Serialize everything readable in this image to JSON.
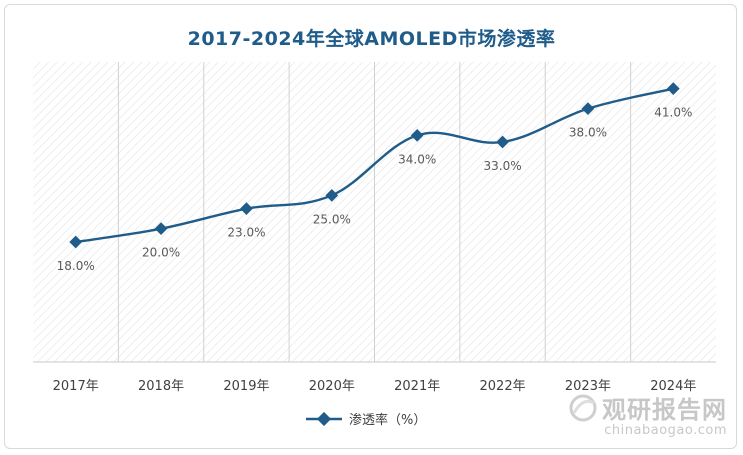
{
  "chart_data": {
    "type": "line",
    "title": "2017-2024年全球AMOLED市场渗透率",
    "categories": [
      "2017年",
      "2018年",
      "2019年",
      "2020年",
      "2021年",
      "2022年",
      "2023年",
      "2024年"
    ],
    "series": [
      {
        "name": "渗透率（%）",
        "values": [
          18.0,
          20.0,
          23.0,
          25.0,
          34.0,
          33.0,
          38.0,
          41.0
        ],
        "labels": [
          "18.0%",
          "20.0%",
          "23.0%",
          "25.0%",
          "34.0%",
          "33.0%",
          "38.0%",
          "41.0%"
        ],
        "color": "#1f5c8a"
      }
    ],
    "ylim": [
      0,
      45
    ],
    "grid": true,
    "legend": "bottom-center"
  },
  "watermark": {
    "name": "观研报告网",
    "url": "chinabaogao.com"
  }
}
